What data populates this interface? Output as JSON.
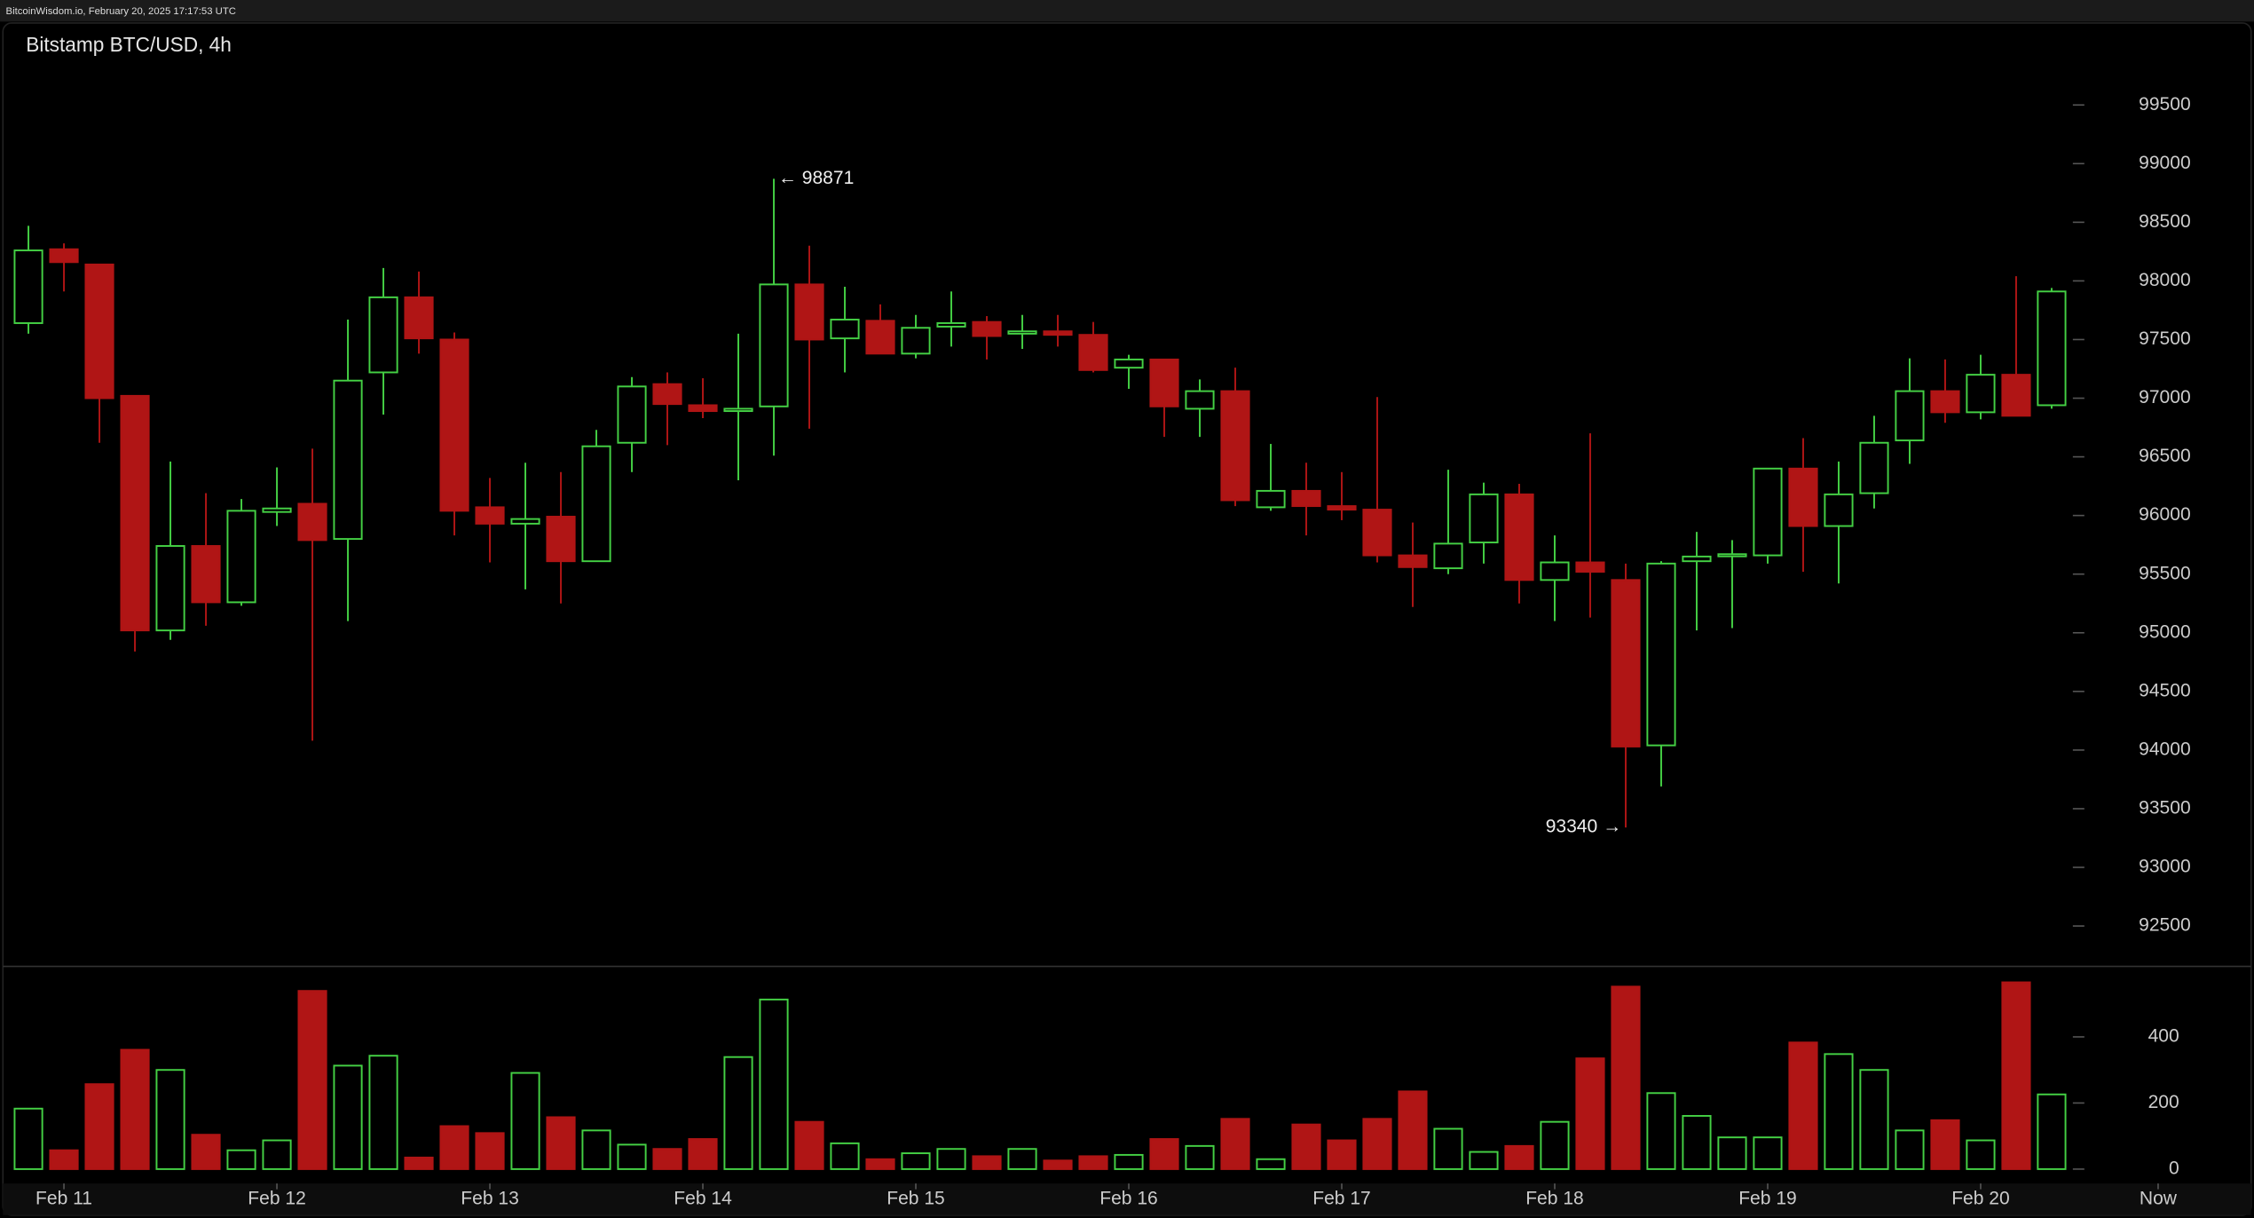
{
  "header": "BitcoinWisdom.io, February 20, 2025 17:17:53 UTC",
  "chart_data": [
    {
      "type": "candlestick",
      "title": "Bitstamp BTC/USD, 4h",
      "up_color": "#44d044",
      "down_color": "#b01515",
      "open": [
        97640,
        98270,
        98140,
        97020,
        95020,
        95740,
        95260,
        96030,
        96100,
        95800,
        97220,
        97860,
        97500,
        96070,
        95930,
        95990,
        95610,
        96620,
        97120,
        96940,
        96890,
        96930,
        97970,
        97510,
        97660,
        97380,
        97610,
        97650,
        97550,
        97570,
        97540,
        97260,
        97330,
        96910,
        97060,
        96070,
        96210,
        96080,
        96050,
        95660,
        95550,
        95770,
        96180,
        95450,
        95600,
        95450,
        94040,
        95610,
        95660,
        95660,
        96400,
        95910,
        96190,
        96640,
        97060,
        96880,
        97200,
        96940
      ],
      "high": [
        98470,
        98320,
        98140,
        97020,
        96460,
        96190,
        96140,
        96410,
        96570,
        97670,
        98110,
        98080,
        97560,
        96320,
        96450,
        96370,
        96730,
        97180,
        97220,
        97170,
        97550,
        98871,
        98300,
        97950,
        97800,
        97710,
        97910,
        97700,
        97710,
        97710,
        97650,
        97370,
        97330,
        97160,
        97260,
        96610,
        96450,
        96370,
        97010,
        95940,
        96390,
        96280,
        96270,
        95830,
        96700,
        95590,
        95610,
        95860,
        95790,
        96400,
        96660,
        96460,
        96850,
        97340,
        97330,
        97370,
        98040,
        97940
      ],
      "low": [
        97550,
        97910,
        96620,
        94840,
        94940,
        95060,
        95230,
        95910,
        94080,
        95100,
        96860,
        97380,
        95830,
        95600,
        95370,
        95250,
        95610,
        96370,
        96600,
        96830,
        96300,
        96510,
        96740,
        97220,
        97380,
        97340,
        97440,
        97330,
        97420,
        97440,
        97220,
        97080,
        96670,
        96670,
        96080,
        96040,
        95830,
        95960,
        95600,
        95220,
        95500,
        95590,
        95250,
        95100,
        95130,
        93340,
        93690,
        95020,
        95040,
        95590,
        95520,
        95420,
        96060,
        96440,
        96790,
        96820,
        96850,
        96910
      ],
      "close": [
        98260,
        98160,
        97000,
        95020,
        95740,
        95260,
        96040,
        96060,
        95790,
        97150,
        97860,
        97510,
        96040,
        95930,
        95970,
        95610,
        96590,
        97100,
        96950,
        96890,
        96910,
        97970,
        97500,
        97670,
        97380,
        97600,
        97640,
        97530,
        97570,
        97540,
        97240,
        97330,
        96930,
        97060,
        96130,
        96210,
        96080,
        96050,
        95660,
        95560,
        95760,
        96180,
        95450,
        95600,
        95520,
        94030,
        95590,
        95650,
        95670,
        96400,
        95910,
        96180,
        96620,
        97060,
        96880,
        97200,
        96850,
        97910
      ],
      "ylim": [
        92156,
        100211
      ],
      "yticks": [
        92500,
        93000,
        93500,
        94000,
        94500,
        95000,
        95500,
        96000,
        96500,
        97000,
        97500,
        98000,
        98500,
        99000,
        99500
      ],
      "xlim": [
        -0.8,
        62.7
      ],
      "xticks": [
        {
          "value": 1,
          "label": "Feb 11"
        },
        {
          "value": 7,
          "label": "Feb 12"
        },
        {
          "value": 13,
          "label": "Feb 13"
        },
        {
          "value": 19,
          "label": "Feb 14"
        },
        {
          "value": 25,
          "label": "Feb 15"
        },
        {
          "value": 31,
          "label": "Feb 16"
        },
        {
          "value": 37,
          "label": "Feb 17"
        },
        {
          "value": 43,
          "label": "Feb 18"
        },
        {
          "value": 49,
          "label": "Feb 19"
        },
        {
          "value": 55,
          "label": "Feb 20"
        },
        {
          "value": 60,
          "label": "Now"
        }
      ],
      "annotations": [
        {
          "text": "← 98871",
          "index": 21
        },
        {
          "text": "93340 →",
          "index": 45
        }
      ]
    },
    {
      "type": "bar",
      "values": [
        183,
        57,
        257,
        361,
        300,
        104,
        57,
        87,
        539,
        313,
        343,
        35,
        130,
        109,
        291,
        157,
        117,
        74,
        61,
        91,
        339,
        513,
        143,
        78,
        30,
        48,
        61,
        39,
        61,
        26,
        39,
        43,
        91,
        70,
        152,
        30,
        135,
        87,
        152,
        235,
        122,
        52,
        70,
        143,
        335,
        552,
        230,
        161,
        96,
        96,
        383,
        348,
        300,
        117,
        148,
        87,
        565,
        226
      ],
      "ylim": [
        0,
        609
      ],
      "yticks": [
        0,
        200,
        400
      ]
    }
  ]
}
